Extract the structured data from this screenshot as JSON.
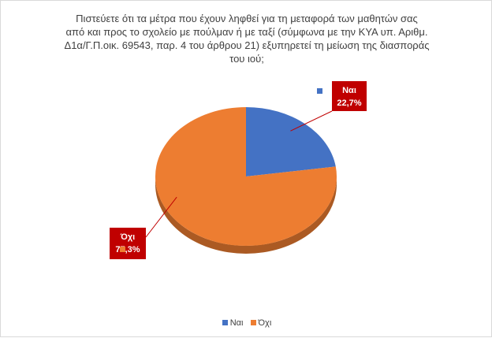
{
  "chart_data": {
    "type": "pie",
    "title_lines": [
      "Πιστεύετε ότι  τα μέτρα που έχουν ληφθεί για τη μεταφορά των μαθητών σας",
      "από και προς το σχολείο με πούλμαν ή με ταξί (σύμφωνα με την ΚΥΑ υπ. Αριθμ.",
      "Δ1α/Γ.Π.οικ. 69543, παρ. 4 του άρθρου 21) εξυπηρετεί τη μείωση της διασποράς",
      "του ιού;"
    ],
    "categories": [
      "Ναι",
      "Όχι"
    ],
    "values": [
      22.7,
      77.3
    ],
    "labels": [
      {
        "name": "Ναι",
        "value": "22,7%"
      },
      {
        "name": "Όχι",
        "value": "77,3%"
      }
    ],
    "colors": [
      "#4472c4",
      "#ed7d31"
    ],
    "label_box_color": "#c00000",
    "three_d": true,
    "legend_position": "bottom"
  }
}
